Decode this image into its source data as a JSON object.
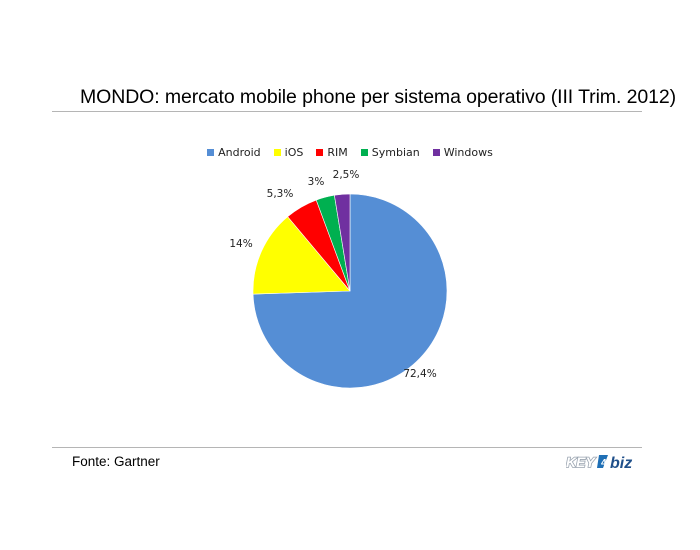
{
  "title": "MONDO: mercato mobile phone per sistema operativo (III Trim. 2012)",
  "source": "Fonte: Gartner",
  "logo": {
    "text_key": "KEY",
    "text_biz": "biz",
    "name": "key4biz-logo"
  },
  "chart_data": {
    "type": "pie",
    "title": "MONDO: mercato mobile phone per sistema operativo (III Trim. 2012)",
    "categories": [
      "Android",
      "iOS",
      "RIM",
      "Symbian",
      "Windows"
    ],
    "values": [
      72.4,
      14,
      5.3,
      3,
      2.5
    ],
    "data_labels": [
      "72,4%",
      "14%",
      "5,3%",
      "3%",
      "2,5%"
    ],
    "colors": [
      "#558ED5",
      "#FFFF00",
      "#FF0000",
      "#00B050",
      "#7030A0"
    ],
    "legend_position": "top",
    "start_angle": "12 o'clock",
    "direction": "clockwise"
  }
}
